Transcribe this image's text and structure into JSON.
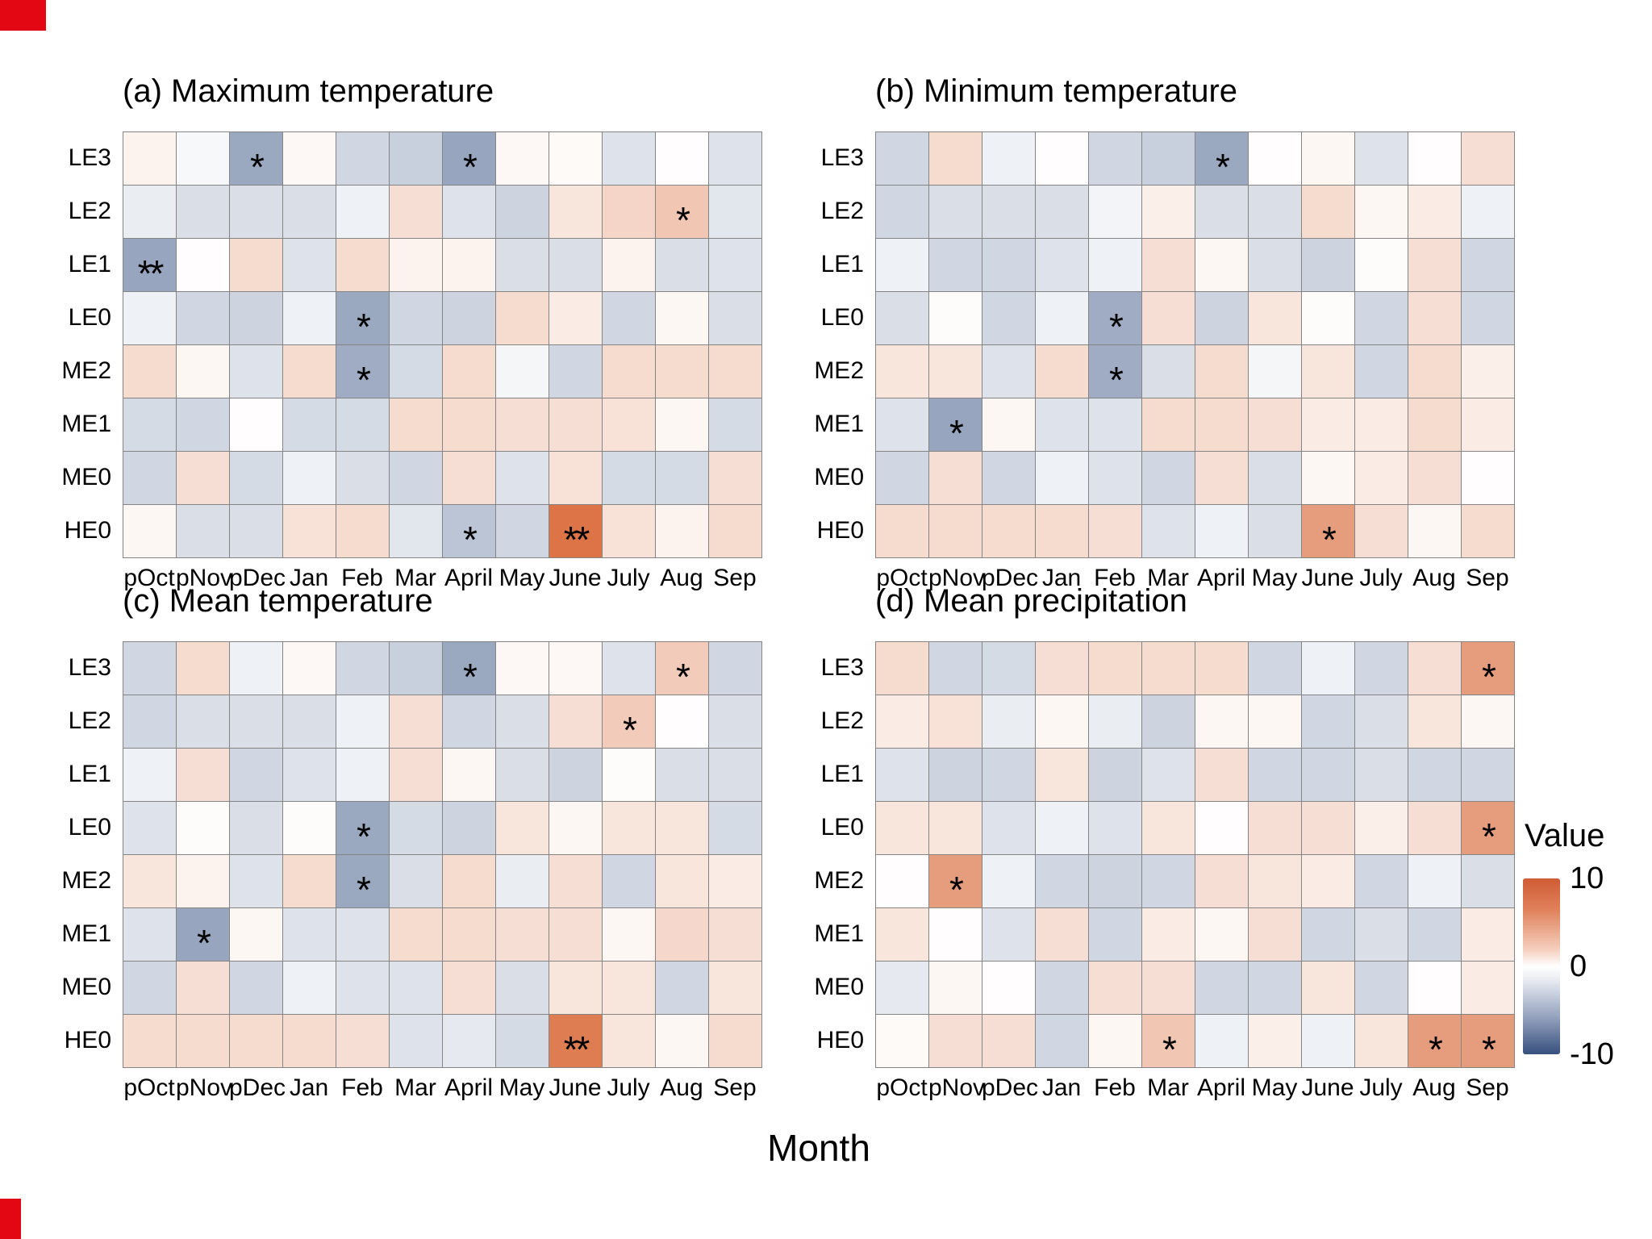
{
  "figure": {
    "xlabel": "Month",
    "months": [
      "pOct",
      "pNov",
      "pDec",
      "Jan",
      "Feb",
      "Mar",
      "April",
      "May",
      "June",
      "July",
      "Aug",
      "Sep"
    ],
    "rows": [
      "LE3",
      "LE2",
      "LE1",
      "LE0",
      "ME2",
      "ME1",
      "ME0",
      "HE0"
    ],
    "colorbar": {
      "title": "Value",
      "ticks": [
        "10",
        "0",
        "-10"
      ],
      "max": 10,
      "min": -10,
      "positive_color": "#d65c26",
      "zero_color": "#ffffff",
      "negative_color": "#2f4b7c"
    },
    "grid_line_color": "#848484",
    "significance_marker_color": "#000000"
  },
  "chart_data": [
    {
      "type": "heatmap",
      "panel": "a",
      "title": "(a) Maximum temperature",
      "categories_x": [
        "pOct",
        "pNov",
        "pDec",
        "Jan",
        "Feb",
        "Mar",
        "April",
        "May",
        "June",
        "July",
        "Aug",
        "Sep"
      ],
      "categories_y": [
        "LE3",
        "LE2",
        "LE1",
        "LE0",
        "ME2",
        "ME1",
        "ME0",
        "HE0"
      ],
      "value_range": [
        -10,
        10
      ],
      "values": [
        [
          0.8,
          -0.4,
          -4.8,
          0.4,
          -2.2,
          -2.6,
          -5.0,
          0.4,
          0.3,
          -1.6,
          0.1,
          -1.6
        ],
        [
          -1.0,
          -1.8,
          -1.8,
          -1.8,
          -0.8,
          2.0,
          -1.6,
          -2.4,
          1.6,
          2.6,
          3.5,
          -1.4
        ],
        [
          -5.0,
          0.1,
          2.2,
          -1.6,
          2.2,
          0.8,
          0.8,
          -1.8,
          -1.8,
          0.8,
          -1.8,
          -1.6
        ],
        [
          -0.8,
          -2.2,
          -2.4,
          -0.8,
          -4.8,
          -2.2,
          -2.4,
          2.2,
          1.2,
          -2.2,
          0.5,
          -1.8
        ],
        [
          2.2,
          0.5,
          -1.6,
          2.2,
          -4.6,
          -2.0,
          2.2,
          -0.5,
          -2.2,
          2.2,
          2.2,
          2.2
        ],
        [
          -2.0,
          -2.2,
          0.1,
          -2.0,
          -2.0,
          2.2,
          2.2,
          2.0,
          2.0,
          1.8,
          0.5,
          -2.0
        ],
        [
          -2.2,
          2.0,
          -2.0,
          -0.8,
          -1.8,
          -2.2,
          2.0,
          -1.6,
          1.8,
          -2.0,
          -2.0,
          2.0
        ],
        [
          0.5,
          -1.8,
          -1.8,
          1.8,
          2.2,
          -1.4,
          -3.2,
          -2.2,
          8.5,
          1.8,
          0.8,
          2.2
        ]
      ],
      "significance": [
        {
          "row": "LE3",
          "col": "pDec",
          "mark": "*"
        },
        {
          "row": "LE3",
          "col": "April",
          "mark": "*"
        },
        {
          "row": "LE2",
          "col": "Aug",
          "mark": "*"
        },
        {
          "row": "LE1",
          "col": "pOct",
          "mark": "**"
        },
        {
          "row": "LE0",
          "col": "Feb",
          "mark": "*"
        },
        {
          "row": "ME2",
          "col": "Feb",
          "mark": "*"
        },
        {
          "row": "HE0",
          "col": "April",
          "mark": "*"
        },
        {
          "row": "HE0",
          "col": "June",
          "mark": "**"
        }
      ]
    },
    {
      "type": "heatmap",
      "panel": "b",
      "title": "(b) Minimum temperature",
      "categories_x": [
        "pOct",
        "pNov",
        "pDec",
        "Jan",
        "Feb",
        "Mar",
        "April",
        "May",
        "June",
        "July",
        "Aug",
        "Sep"
      ],
      "categories_y": [
        "LE3",
        "LE2",
        "LE1",
        "LE0",
        "ME2",
        "ME1",
        "ME0",
        "HE0"
      ],
      "value_range": [
        -10,
        10
      ],
      "values": [
        [
          -2.2,
          2.2,
          -0.8,
          0.1,
          -2.2,
          -2.6,
          -4.8,
          0.1,
          0.5,
          -1.6,
          0.1,
          2.0
        ],
        [
          -2.2,
          -1.8,
          -1.8,
          -1.8,
          -0.6,
          1.0,
          -1.8,
          -1.8,
          2.2,
          0.5,
          1.2,
          -0.8
        ],
        [
          -0.8,
          -2.2,
          -2.2,
          -1.6,
          -0.8,
          2.0,
          0.5,
          -1.8,
          -2.4,
          0.2,
          2.0,
          -2.2
        ],
        [
          -1.8,
          0.2,
          -2.2,
          -0.8,
          -4.6,
          2.0,
          -2.4,
          1.6,
          0.2,
          -2.2,
          2.0,
          -2.2
        ],
        [
          1.6,
          1.6,
          -1.6,
          2.2,
          -4.6,
          -1.8,
          2.2,
          -0.5,
          1.6,
          -2.2,
          2.2,
          1.0
        ],
        [
          -1.6,
          -5.0,
          0.5,
          -1.6,
          -1.6,
          2.2,
          2.2,
          2.0,
          1.2,
          1.2,
          2.2,
          1.2
        ],
        [
          -2.2,
          2.0,
          -2.2,
          -0.8,
          -1.6,
          -2.2,
          2.0,
          -1.8,
          0.5,
          1.2,
          2.0,
          0.1
        ],
        [
          2.2,
          2.2,
          2.2,
          2.2,
          2.0,
          -1.6,
          -0.8,
          -1.8,
          6.0,
          2.0,
          0.5,
          2.2
        ]
      ],
      "significance": [
        {
          "row": "LE3",
          "col": "April",
          "mark": "*"
        },
        {
          "row": "LE0",
          "col": "Feb",
          "mark": "*"
        },
        {
          "row": "ME2",
          "col": "Feb",
          "mark": "*"
        },
        {
          "row": "ME1",
          "col": "pNov",
          "mark": "*"
        },
        {
          "row": "HE0",
          "col": "June",
          "mark": "*"
        }
      ]
    },
    {
      "type": "heatmap",
      "panel": "c",
      "title": "(c) Mean temperature",
      "categories_x": [
        "pOct",
        "pNov",
        "pDec",
        "Jan",
        "Feb",
        "Mar",
        "April",
        "May",
        "June",
        "July",
        "Aug",
        "Sep"
      ],
      "categories_y": [
        "LE3",
        "LE2",
        "LE1",
        "LE0",
        "ME2",
        "ME1",
        "ME0",
        "HE0"
      ],
      "value_range": [
        -10,
        10
      ],
      "values": [
        [
          -2.2,
          2.2,
          -0.8,
          0.4,
          -2.2,
          -2.6,
          -4.8,
          0.4,
          0.4,
          -1.6,
          3.2,
          -2.2
        ],
        [
          -2.2,
          -1.8,
          -1.8,
          -1.8,
          -0.8,
          2.0,
          -2.2,
          -1.8,
          2.0,
          3.2,
          0.1,
          -1.8
        ],
        [
          -0.8,
          2.0,
          -2.2,
          -1.6,
          -0.8,
          2.0,
          0.5,
          -1.8,
          -2.4,
          0.2,
          -1.8,
          -1.8
        ],
        [
          -1.6,
          0.2,
          -1.8,
          0.2,
          -4.8,
          -2.0,
          -2.4,
          1.6,
          0.5,
          1.6,
          1.6,
          -2.0
        ],
        [
          1.6,
          0.8,
          -1.6,
          2.2,
          -4.8,
          -1.8,
          2.2,
          -1.0,
          2.0,
          -2.2,
          1.6,
          1.2
        ],
        [
          -1.6,
          -5.0,
          0.5,
          -1.6,
          -1.6,
          2.2,
          2.2,
          2.0,
          2.0,
          0.5,
          2.4,
          2.0
        ],
        [
          -2.2,
          2.0,
          -2.2,
          -0.8,
          -1.6,
          -1.6,
          2.0,
          -1.8,
          1.6,
          1.6,
          -2.2,
          1.6
        ],
        [
          2.2,
          2.2,
          2.2,
          2.2,
          2.0,
          -1.6,
          -1.2,
          -2.0,
          8.0,
          1.6,
          0.5,
          2.2
        ]
      ],
      "significance": [
        {
          "row": "LE3",
          "col": "April",
          "mark": "*"
        },
        {
          "row": "LE3",
          "col": "Aug",
          "mark": "*"
        },
        {
          "row": "LE2",
          "col": "July",
          "mark": "*"
        },
        {
          "row": "LE0",
          "col": "Feb",
          "mark": "*"
        },
        {
          "row": "ME2",
          "col": "Feb",
          "mark": "*"
        },
        {
          "row": "ME1",
          "col": "pNov",
          "mark": "*"
        },
        {
          "row": "HE0",
          "col": "June",
          "mark": "**"
        }
      ]
    },
    {
      "type": "heatmap",
      "panel": "d",
      "title": "(d) Mean precipitation",
      "categories_x": [
        "pOct",
        "pNov",
        "pDec",
        "Jan",
        "Feb",
        "Mar",
        "April",
        "May",
        "June",
        "July",
        "Aug",
        "Sep"
      ],
      "categories_y": [
        "LE3",
        "LE2",
        "LE1",
        "LE0",
        "ME2",
        "ME1",
        "ME0",
        "HE0"
      ],
      "value_range": [
        -10,
        10
      ],
      "values": [
        [
          2.2,
          -2.2,
          -2.0,
          2.0,
          2.2,
          2.2,
          2.2,
          -2.2,
          -0.8,
          -2.2,
          2.0,
          6.0
        ],
        [
          1.2,
          1.8,
          -1.0,
          0.5,
          -1.0,
          -2.4,
          0.5,
          0.5,
          -2.2,
          -1.8,
          1.6,
          0.5
        ],
        [
          -1.6,
          -2.4,
          -2.2,
          1.6,
          -2.4,
          -1.6,
          2.0,
          -2.2,
          -2.2,
          -1.8,
          -2.2,
          -2.2
        ],
        [
          1.6,
          1.6,
          -1.6,
          -0.8,
          -1.6,
          1.6,
          0.1,
          2.0,
          2.0,
          1.0,
          2.0,
          6.0
        ],
        [
          0.1,
          6.0,
          -0.8,
          -2.2,
          -2.4,
          -2.2,
          2.0,
          1.6,
          1.2,
          -2.2,
          -0.8,
          -1.8
        ],
        [
          1.6,
          0.1,
          -1.6,
          2.0,
          -2.2,
          1.2,
          0.5,
          2.0,
          -2.2,
          -1.8,
          -2.2,
          1.2
        ],
        [
          -1.2,
          0.5,
          0.1,
          -2.2,
          2.0,
          2.0,
          -2.2,
          -2.2,
          1.6,
          -2.2,
          0.1,
          1.2
        ],
        [
          0.3,
          2.0,
          2.0,
          -2.2,
          0.5,
          3.5,
          -0.8,
          1.0,
          -0.8,
          1.6,
          6.0,
          6.0
        ]
      ],
      "significance": [
        {
          "row": "LE3",
          "col": "Sep",
          "mark": "*"
        },
        {
          "row": "LE0",
          "col": "Sep",
          "mark": "*"
        },
        {
          "row": "ME2",
          "col": "pNov",
          "mark": "*"
        },
        {
          "row": "HE0",
          "col": "Mar",
          "mark": "*"
        },
        {
          "row": "HE0",
          "col": "Aug",
          "mark": "*"
        },
        {
          "row": "HE0",
          "col": "Sep",
          "mark": "*"
        }
      ]
    }
  ]
}
